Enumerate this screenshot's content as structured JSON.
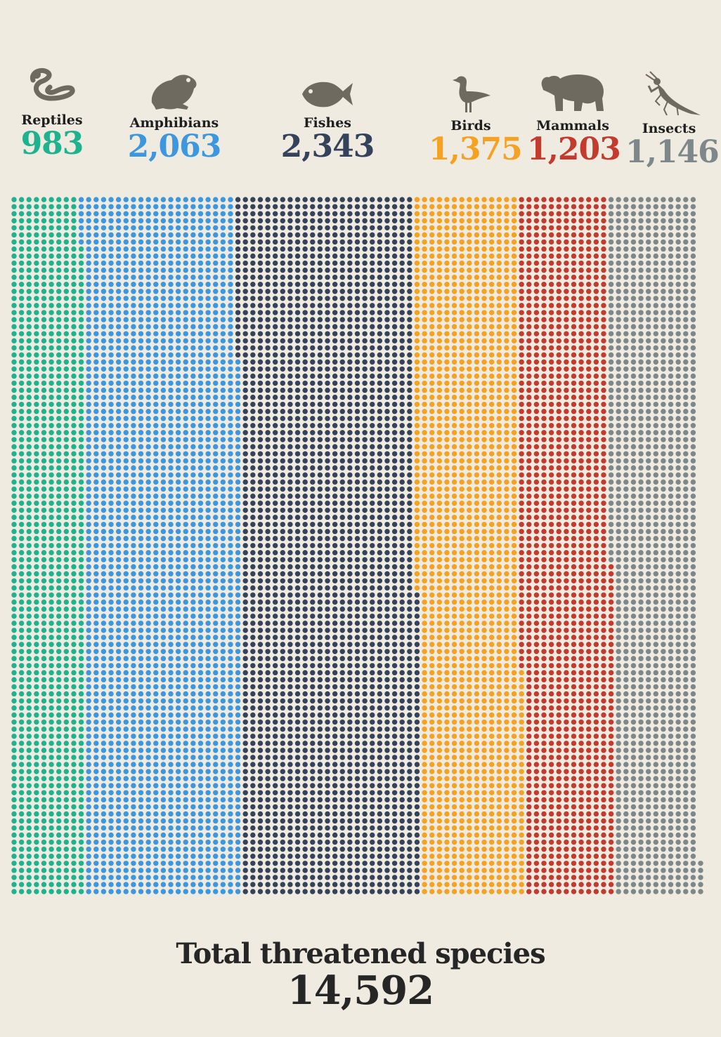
{
  "colors": {
    "background": "#efebe1",
    "icon": "#6f6a60",
    "text": "#262626"
  },
  "chart_data": {
    "type": "waffle",
    "title": "",
    "unit_note": "each dot = 1 threatened species",
    "series": [
      {
        "name": "Reptiles",
        "value": 983,
        "label": "983",
        "color": "#1fb28f",
        "icon": "snake-icon"
      },
      {
        "name": "Amphibians",
        "value": 2063,
        "label": "2,063",
        "color": "#3d97de",
        "icon": "frog-icon"
      },
      {
        "name": "Fishes",
        "value": 2343,
        "label": "2,343",
        "color": "#34435a",
        "icon": "fish-icon"
      },
      {
        "name": "Birds",
        "value": 1375,
        "label": "1,375",
        "color": "#f5a122",
        "icon": "bird-icon"
      },
      {
        "name": "Mammals",
        "value": 1203,
        "label": "1,203",
        "color": "#c23b2e",
        "icon": "bear-icon"
      },
      {
        "name": "Insects",
        "value": 1146,
        "label": "1,146",
        "color": "#7e8789",
        "icon": "mantis-icon"
      }
    ],
    "total_label": "Total threatened species",
    "total_value": "14,592"
  }
}
